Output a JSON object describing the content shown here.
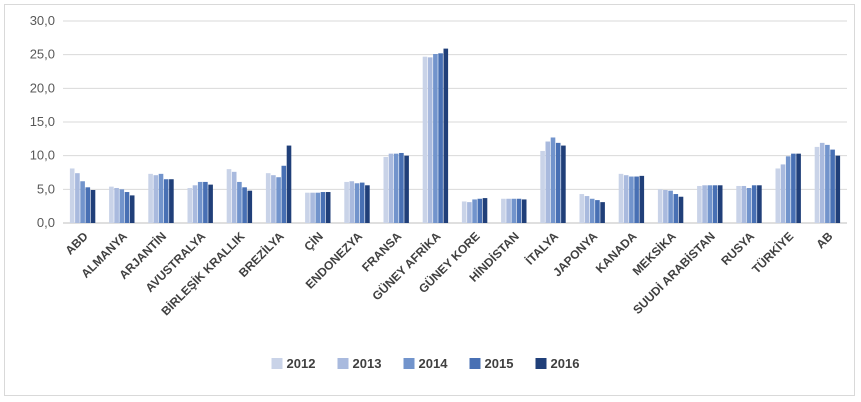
{
  "chart_data": {
    "type": "bar",
    "title": "",
    "xlabel": "",
    "ylabel": "",
    "ylim": [
      0,
      30
    ],
    "yticks": [
      "0,0",
      "5,0",
      "10,0",
      "15,0",
      "20,0",
      "25,0",
      "30,0"
    ],
    "grid": true,
    "legend_position": "bottom",
    "categories": [
      "ABD",
      "ALMANYA",
      "ARJANTİN",
      "AVUSTRALYA",
      "BİRLEŞİK KRALLIK",
      "BREZİLYA",
      "ÇİN",
      "ENDONEZYA",
      "FRANSA",
      "GÜNEY AFRİKA",
      "GÜNEY KORE",
      "HİNDİSTAN",
      "İTALYA",
      "JAPONYA",
      "KANADA",
      "MEKSİKA",
      "SUUDİ ARABİSTAN",
      "RUSYA",
      "TÜRKİYE",
      "AB"
    ],
    "series": [
      {
        "name": "2012",
        "color": "#c9d3e8",
        "values": [
          8.1,
          5.4,
          7.3,
          5.2,
          8.0,
          7.4,
          4.5,
          6.1,
          9.8,
          24.7,
          3.2,
          3.6,
          10.7,
          4.3,
          7.3,
          5.0,
          5.5,
          5.5,
          8.1,
          11.3
        ]
      },
      {
        "name": "2013",
        "color": "#a9bade",
        "values": [
          7.4,
          5.2,
          7.1,
          5.6,
          7.6,
          7.1,
          4.5,
          6.2,
          10.3,
          24.6,
          3.1,
          3.6,
          12.1,
          4.0,
          7.1,
          4.9,
          5.6,
          5.5,
          8.7,
          11.9
        ]
      },
      {
        "name": "2014",
        "color": "#7294cc",
        "values": [
          6.2,
          5.0,
          7.3,
          6.1,
          6.1,
          6.8,
          4.5,
          5.9,
          10.3,
          25.1,
          3.5,
          3.6,
          12.7,
          3.6,
          6.9,
          4.8,
          5.6,
          5.2,
          9.9,
          11.6
        ]
      },
      {
        "name": "2015",
        "color": "#4870b4",
        "values": [
          5.3,
          4.6,
          6.5,
          6.1,
          5.3,
          8.5,
          4.6,
          6.0,
          10.4,
          25.2,
          3.6,
          3.6,
          11.9,
          3.4,
          6.9,
          4.3,
          5.6,
          5.6,
          10.3,
          10.9
        ]
      },
      {
        "name": "2016",
        "color": "#203f79",
        "values": [
          4.9,
          4.1,
          6.5,
          5.7,
          4.8,
          11.5,
          4.6,
          5.6,
          10.0,
          25.9,
          3.7,
          3.5,
          11.5,
          3.1,
          7.0,
          3.9,
          5.6,
          5.6,
          10.3,
          10.0
        ]
      }
    ]
  }
}
